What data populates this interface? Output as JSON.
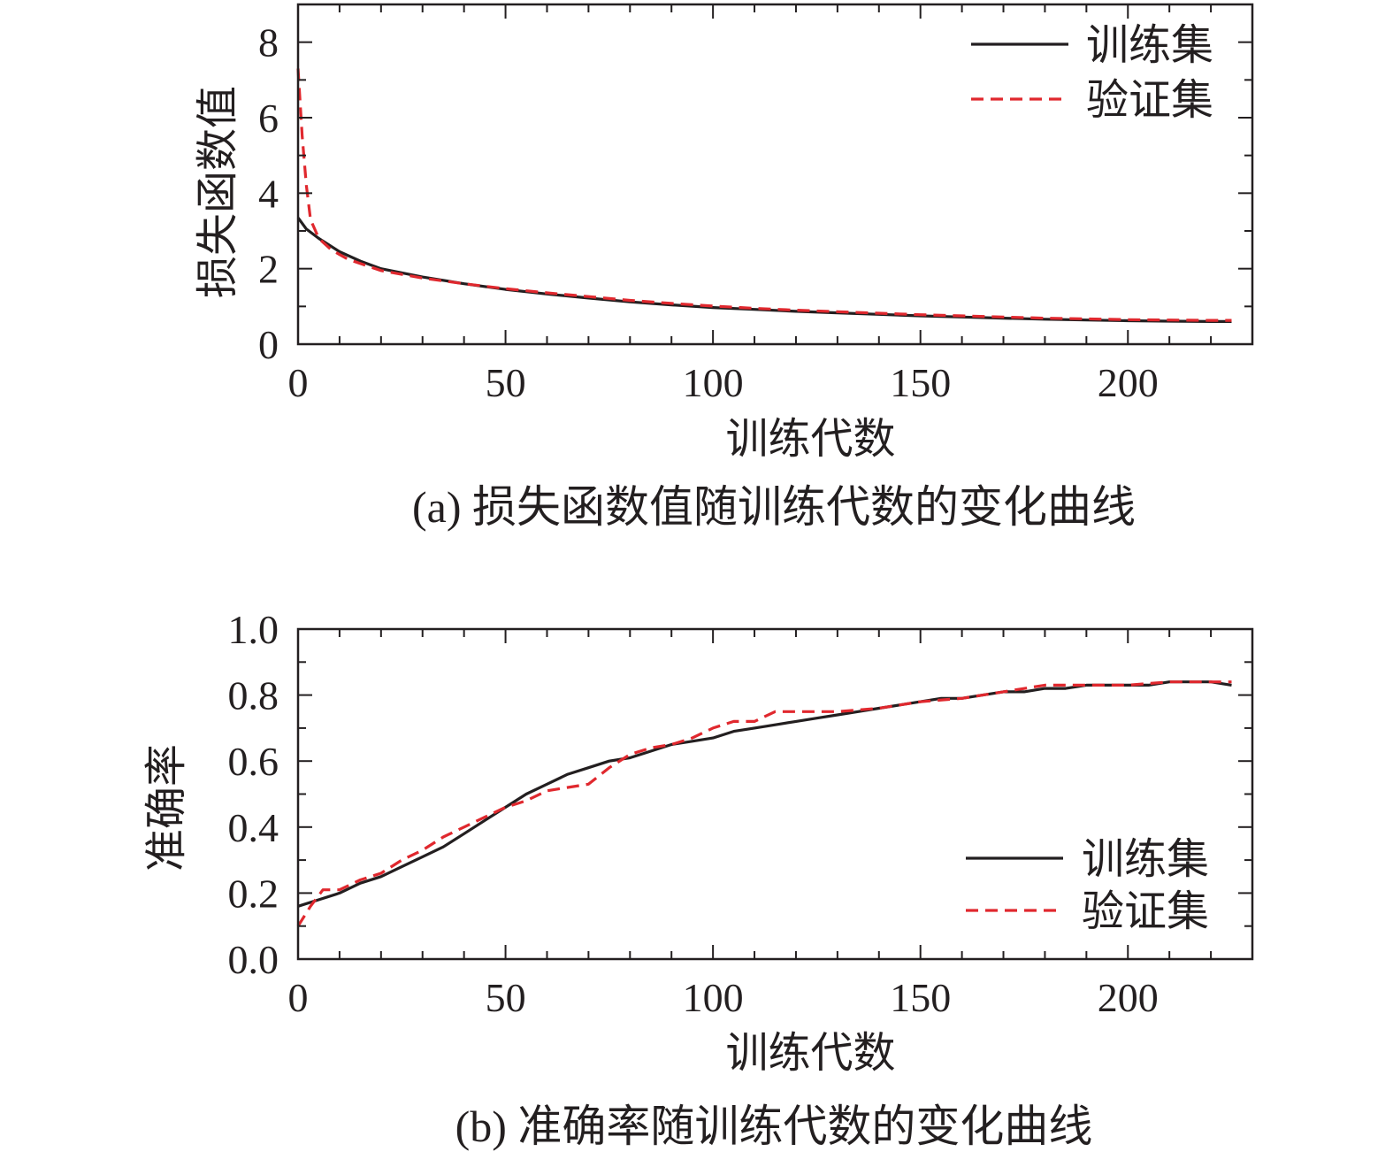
{
  "chart_data": [
    {
      "type": "line",
      "caption": "(a) 损失函数值随训练代数的变化曲线",
      "xlabel": "训练代数",
      "ylabel": "损失函数值",
      "xlim": [
        0,
        230
      ],
      "ylim": [
        0,
        9
      ],
      "xticks": [
        "0",
        "50",
        "100",
        "150",
        "200"
      ],
      "yticks": [
        "0",
        "2",
        "4",
        "6",
        "8"
      ],
      "xtick_values": [
        0,
        50,
        100,
        150,
        200
      ],
      "ytick_values": [
        0,
        2,
        4,
        6,
        8
      ],
      "legend_position": "top-right",
      "series": [
        {
          "name": "训练集",
          "color": "#231f20",
          "style": "solid",
          "x": [
            0,
            2,
            5,
            10,
            15,
            20,
            30,
            40,
            50,
            60,
            70,
            80,
            90,
            100,
            110,
            120,
            130,
            140,
            150,
            160,
            170,
            180,
            190,
            200,
            210,
            220,
            225
          ],
          "y": [
            3.35,
            3.05,
            2.8,
            2.45,
            2.2,
            2.0,
            1.78,
            1.6,
            1.45,
            1.33,
            1.22,
            1.12,
            1.04,
            0.97,
            0.92,
            0.87,
            0.83,
            0.79,
            0.75,
            0.72,
            0.69,
            0.66,
            0.64,
            0.62,
            0.61,
            0.6,
            0.6
          ]
        },
        {
          "name": "验证集",
          "color": "#e0282e",
          "style": "dashed",
          "x": [
            0,
            1,
            2,
            3,
            5,
            8,
            12,
            20,
            30,
            40,
            50,
            60,
            70,
            80,
            90,
            100,
            110,
            120,
            130,
            140,
            150,
            160,
            170,
            180,
            190,
            200,
            210,
            220,
            225
          ],
          "y": [
            7.3,
            5.5,
            4.2,
            3.3,
            2.8,
            2.5,
            2.25,
            1.95,
            1.75,
            1.6,
            1.47,
            1.36,
            1.26,
            1.16,
            1.08,
            1.01,
            0.95,
            0.9,
            0.86,
            0.82,
            0.78,
            0.75,
            0.72,
            0.69,
            0.67,
            0.65,
            0.64,
            0.63,
            0.63
          ]
        }
      ]
    },
    {
      "type": "line",
      "caption": "(b) 准确率随训练代数的变化曲线",
      "xlabel": "训练代数",
      "ylabel": "准确率",
      "xlim": [
        0,
        230
      ],
      "ylim": [
        0,
        1.0
      ],
      "xticks": [
        "0",
        "50",
        "100",
        "150",
        "200"
      ],
      "yticks": [
        "0.0",
        "0.2",
        "0.4",
        "0.6",
        "0.8",
        "1.0"
      ],
      "xtick_values": [
        0,
        50,
        100,
        150,
        200
      ],
      "ytick_values": [
        0,
        0.2,
        0.4,
        0.6,
        0.8,
        1.0
      ],
      "legend_position": "bottom-right",
      "series": [
        {
          "name": "训练集",
          "color": "#231f20",
          "style": "solid",
          "x": [
            0,
            5,
            10,
            15,
            20,
            25,
            30,
            35,
            40,
            45,
            50,
            55,
            60,
            65,
            70,
            75,
            80,
            85,
            90,
            95,
            100,
            105,
            110,
            115,
            120,
            125,
            130,
            135,
            140,
            145,
            150,
            155,
            160,
            165,
            170,
            175,
            180,
            185,
            190,
            195,
            200,
            205,
            210,
            215,
            220,
            225
          ],
          "y": [
            0.16,
            0.18,
            0.2,
            0.23,
            0.25,
            0.28,
            0.31,
            0.34,
            0.38,
            0.42,
            0.46,
            0.5,
            0.53,
            0.56,
            0.58,
            0.6,
            0.61,
            0.63,
            0.65,
            0.66,
            0.67,
            0.69,
            0.7,
            0.71,
            0.72,
            0.73,
            0.74,
            0.75,
            0.76,
            0.77,
            0.78,
            0.79,
            0.79,
            0.8,
            0.81,
            0.81,
            0.82,
            0.82,
            0.83,
            0.83,
            0.83,
            0.83,
            0.84,
            0.84,
            0.84,
            0.83
          ]
        },
        {
          "name": "验证集",
          "color": "#e0282e",
          "style": "dashed",
          "x": [
            0,
            3,
            6,
            10,
            15,
            20,
            25,
            30,
            35,
            40,
            45,
            50,
            55,
            60,
            65,
            70,
            75,
            80,
            85,
            90,
            95,
            100,
            105,
            110,
            115,
            120,
            125,
            130,
            140,
            150,
            160,
            170,
            180,
            190,
            200,
            210,
            220,
            225
          ],
          "y": [
            0.1,
            0.16,
            0.21,
            0.21,
            0.24,
            0.26,
            0.3,
            0.33,
            0.37,
            0.4,
            0.43,
            0.46,
            0.48,
            0.51,
            0.52,
            0.53,
            0.58,
            0.62,
            0.64,
            0.65,
            0.67,
            0.7,
            0.72,
            0.72,
            0.75,
            0.75,
            0.75,
            0.75,
            0.76,
            0.78,
            0.79,
            0.81,
            0.83,
            0.83,
            0.83,
            0.84,
            0.84,
            0.84
          ]
        }
      ]
    }
  ]
}
